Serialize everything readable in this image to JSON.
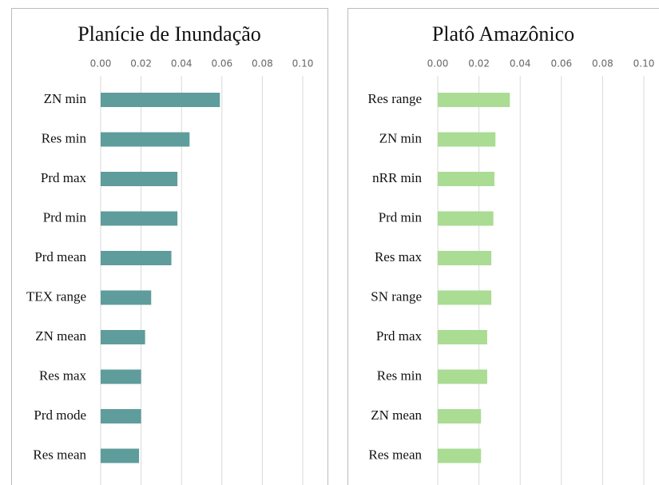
{
  "chart_data": [
    {
      "type": "bar",
      "title": "Planície de Inundação",
      "categories": [
        "ZN min",
        "Res min",
        "Prd max",
        "Prd min",
        "Prd mean",
        "TEX range",
        "ZN mean",
        "Res max",
        "Prd mode",
        "Res mean"
      ],
      "values": [
        0.059,
        0.044,
        0.038,
        0.038,
        0.035,
        0.025,
        0.022,
        0.02,
        0.02,
        0.019
      ],
      "color": "#5f9c9c",
      "xlim": [
        0,
        0.1
      ],
      "xticks": [
        {
          "value": 0,
          "label": "0.00"
        },
        {
          "value": 0.02,
          "label": "0.02"
        },
        {
          "value": 0.04,
          "label": "0.04"
        },
        {
          "value": 0.06,
          "label": "0.06"
        },
        {
          "value": 0.08,
          "label": "0.08"
        },
        {
          "value": 0.1,
          "label": "0.10"
        }
      ],
      "grid": true
    },
    {
      "type": "bar",
      "title": "Platô Amazônico",
      "categories": [
        "Res range",
        "ZN min",
        "nRR min",
        "Prd min",
        "Res max",
        "SN range",
        "Prd max",
        "Res min",
        "ZN mean",
        "Res mean"
      ],
      "values": [
        0.035,
        0.028,
        0.0275,
        0.027,
        0.026,
        0.026,
        0.024,
        0.024,
        0.021,
        0.021
      ],
      "color": "#aadc94",
      "xlim": [
        0,
        0.1
      ],
      "xticks": [
        {
          "value": 0,
          "label": "0.00"
        },
        {
          "value": 0.02,
          "label": "0.02"
        },
        {
          "value": 0.04,
          "label": "0.04"
        },
        {
          "value": 0.06,
          "label": "0.06"
        },
        {
          "value": 0.08,
          "label": "0.08"
        },
        {
          "value": 0.1,
          "label": "0.10"
        }
      ],
      "grid": true
    }
  ]
}
